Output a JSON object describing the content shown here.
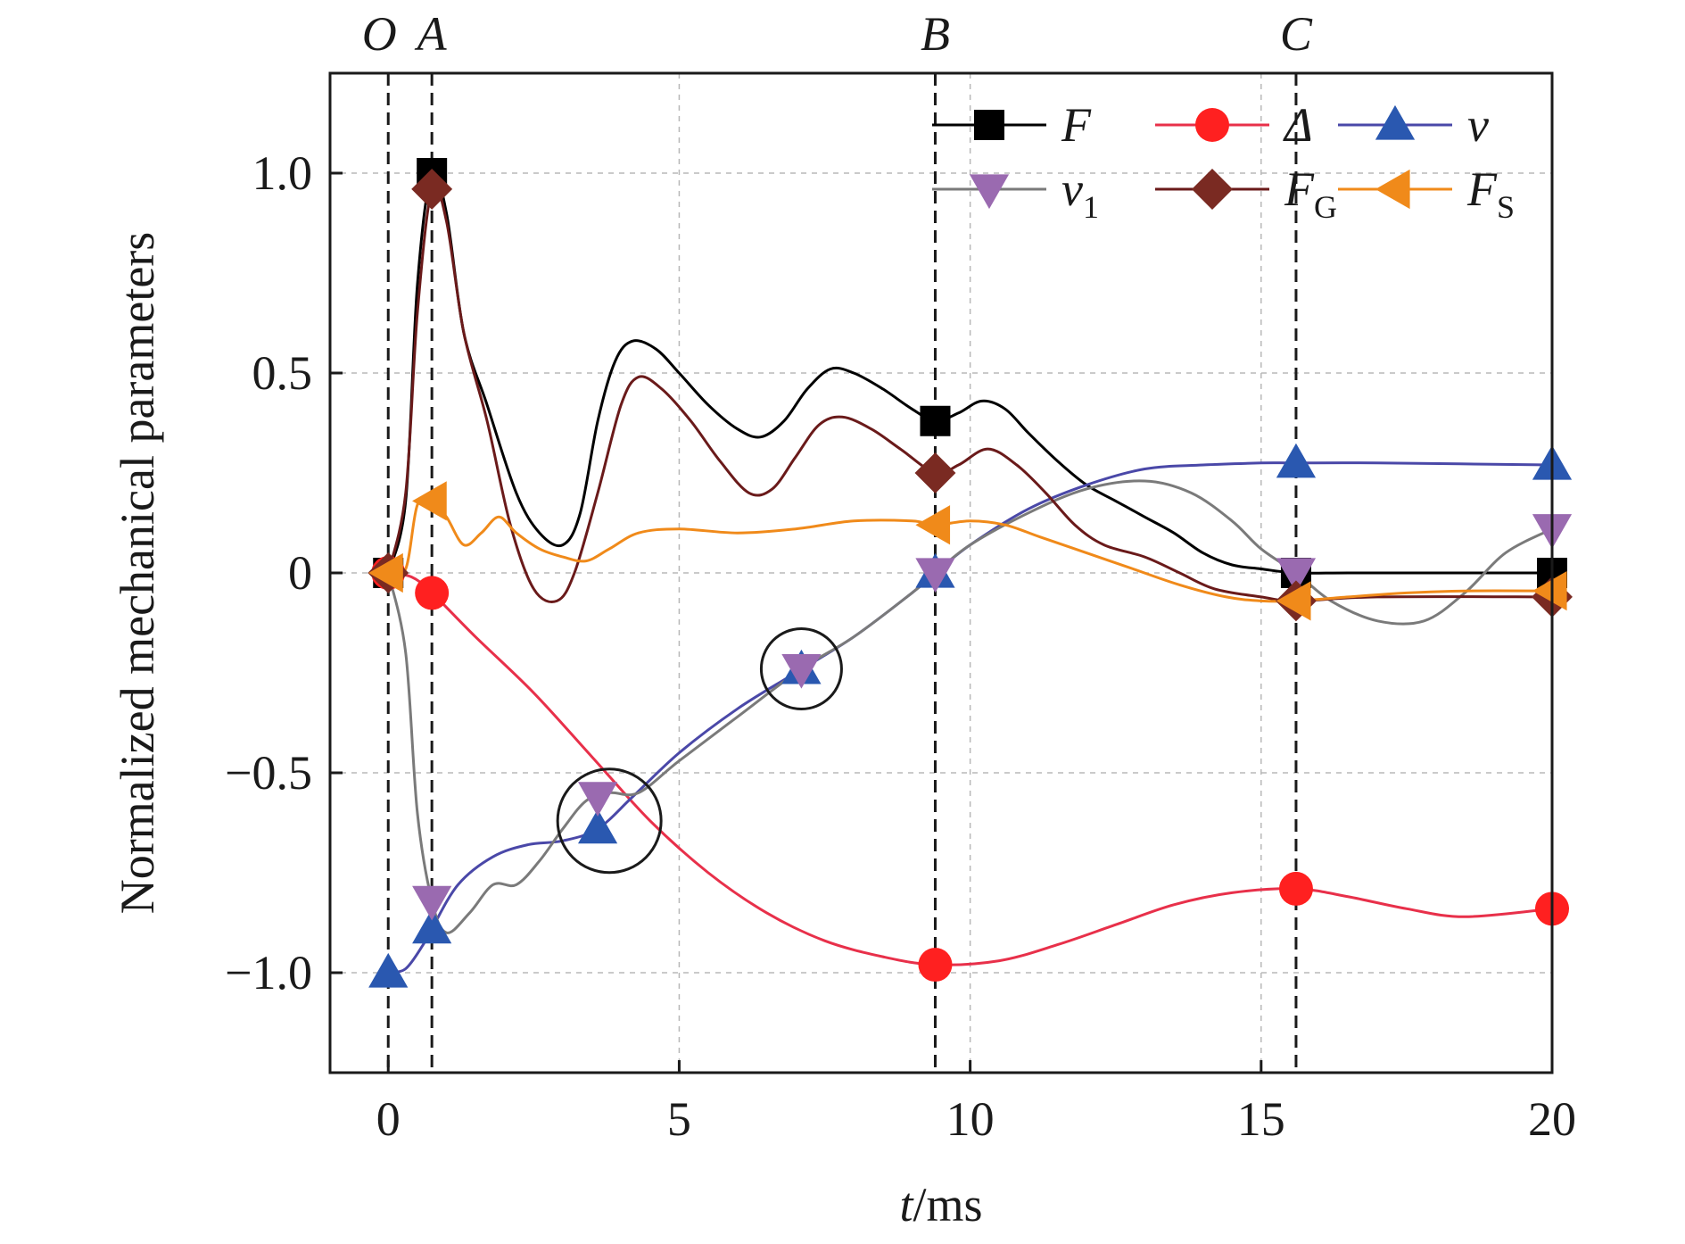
{
  "chart_data": {
    "type": "line",
    "title": "",
    "xlabel_italic": "t",
    "xlabel_rest": "/ms",
    "ylabel": "Normalized mechanical parameters",
    "xlim": [
      -1,
      20
    ],
    "ylim": [
      -1.25,
      1.25
    ],
    "xticks": [
      0,
      5,
      10,
      15,
      20
    ],
    "xtick_labels": [
      "0",
      "5",
      "10",
      "15",
      "20"
    ],
    "yticks": [
      -1.0,
      -0.5,
      0,
      0.5,
      1.0
    ],
    "ytick_labels": [
      "−1.0",
      "−0.5",
      "0",
      "0.5",
      "1.0"
    ],
    "grid": true,
    "legend_position": "top-right",
    "event_lines": [
      {
        "label": "O",
        "x": 0
      },
      {
        "label": "A",
        "x": 0.75
      },
      {
        "label": "B",
        "x": 9.4
      },
      {
        "label": "C",
        "x": 15.6
      }
    ],
    "highlight_circles": [
      {
        "x": 3.8,
        "y": -0.62
      },
      {
        "x": 7.1,
        "y": -0.24
      }
    ],
    "series": [
      {
        "name": "F",
        "sub": "",
        "color": "#000000",
        "marker": "square",
        "x": [
          0,
          0.3,
          0.5,
          0.75,
          1.0,
          1.3,
          1.7,
          2.2,
          2.6,
          3.0,
          3.3,
          3.6,
          3.9,
          4.2,
          4.6,
          5.0,
          5.5,
          6.0,
          6.4,
          6.8,
          7.2,
          7.6,
          8.0,
          8.5,
          9.0,
          9.4,
          9.8,
          10.2,
          10.6,
          11.0,
          11.5,
          12.0,
          12.5,
          13.0,
          13.5,
          14.0,
          14.5,
          15.0,
          15.6,
          16.5,
          18.0,
          20.0
        ],
        "y": [
          0,
          0.18,
          0.72,
          1.0,
          0.9,
          0.6,
          0.42,
          0.2,
          0.1,
          0.07,
          0.15,
          0.38,
          0.53,
          0.58,
          0.56,
          0.5,
          0.42,
          0.36,
          0.34,
          0.38,
          0.46,
          0.51,
          0.5,
          0.46,
          0.41,
          0.38,
          0.4,
          0.43,
          0.41,
          0.35,
          0.28,
          0.22,
          0.18,
          0.14,
          0.1,
          0.05,
          0.02,
          0.01,
          0.0,
          0.0,
          0.0,
          0.0
        ],
        "markers_x": [
          0,
          0.75,
          9.4,
          15.6,
          20.0
        ]
      },
      {
        "name": "Δ",
        "sub": "",
        "color": "#e8304a",
        "marker": "circle",
        "marker_color": "#ff2020",
        "x": [
          0,
          0.4,
          0.75,
          1.5,
          2.5,
          3.5,
          4.5,
          5.5,
          6.5,
          7.5,
          8.5,
          9.4,
          10.5,
          11.5,
          12.5,
          13.5,
          14.5,
          15.6,
          16.5,
          17.5,
          18.5,
          20.0
        ],
        "y": [
          0,
          -0.01,
          -0.05,
          -0.16,
          -0.3,
          -0.46,
          -0.62,
          -0.75,
          -0.85,
          -0.92,
          -0.96,
          -0.98,
          -0.97,
          -0.93,
          -0.88,
          -0.83,
          -0.8,
          -0.79,
          -0.81,
          -0.84,
          -0.86,
          -0.84
        ],
        "markers_x": [
          0,
          0.75,
          9.4,
          15.6,
          20.0
        ]
      },
      {
        "name": "v",
        "sub": "",
        "color": "#4a48a8",
        "marker": "triangle-up",
        "marker_color": "#2a58b0",
        "x": [
          0,
          0.3,
          0.6,
          0.75,
          1.2,
          1.8,
          2.4,
          3.0,
          3.6,
          4.2,
          5.0,
          6.0,
          7.0,
          8.0,
          9.0,
          9.4,
          10.0,
          11.0,
          12.0,
          13.0,
          14.0,
          15.0,
          15.6,
          17.0,
          20.0
        ],
        "y": [
          -1.0,
          -0.99,
          -0.93,
          -0.89,
          -0.78,
          -0.71,
          -0.68,
          -0.67,
          -0.64,
          -0.56,
          -0.45,
          -0.34,
          -0.25,
          -0.16,
          -0.05,
          0.0,
          0.07,
          0.16,
          0.22,
          0.26,
          0.27,
          0.275,
          0.275,
          0.275,
          0.27
        ],
        "markers_x": [
          0,
          0.75,
          3.6,
          7.1,
          9.4,
          15.6,
          20.0
        ]
      },
      {
        "name": "v",
        "sub": "1",
        "color": "#7a7a7a",
        "marker": "triangle-down",
        "marker_color": "#9a6ab0",
        "x": [
          0,
          0.3,
          0.5,
          0.75,
          1.0,
          1.4,
          1.8,
          2.2,
          2.6,
          3.0,
          3.4,
          3.8,
          4.3,
          5.0,
          6.0,
          7.1,
          8.0,
          9.0,
          9.4,
          10.0,
          11.0,
          12.0,
          13.0,
          13.8,
          14.5,
          15.0,
          15.6,
          16.2,
          17.0,
          17.8,
          18.5,
          19.2,
          20.0
        ],
        "y": [
          0,
          -0.2,
          -0.6,
          -0.82,
          -0.9,
          -0.85,
          -0.78,
          -0.78,
          -0.72,
          -0.64,
          -0.57,
          -0.55,
          -0.55,
          -0.47,
          -0.36,
          -0.24,
          -0.16,
          -0.05,
          0.0,
          0.07,
          0.15,
          0.21,
          0.23,
          0.2,
          0.13,
          0.06,
          0.0,
          -0.07,
          -0.12,
          -0.12,
          -0.05,
          0.05,
          0.11
        ],
        "markers_x": [
          0.75,
          3.6,
          7.1,
          9.4,
          15.6,
          20.0
        ]
      },
      {
        "name": "F",
        "sub": "G",
        "color": "#6a1a1a",
        "marker": "diamond",
        "marker_color": "#7a2a22",
        "x": [
          0,
          0.3,
          0.5,
          0.75,
          1.0,
          1.3,
          1.7,
          2.1,
          2.5,
          2.9,
          3.2,
          3.6,
          4.0,
          4.3,
          4.7,
          5.2,
          5.7,
          6.2,
          6.6,
          7.0,
          7.4,
          7.8,
          8.3,
          8.8,
          9.4,
          9.8,
          10.3,
          10.8,
          11.3,
          11.8,
          12.3,
          13.0,
          13.6,
          14.2,
          15.0,
          15.6,
          17.0,
          20.0
        ],
        "y": [
          0,
          0.2,
          0.65,
          0.96,
          0.88,
          0.6,
          0.38,
          0.12,
          -0.04,
          -0.07,
          0.0,
          0.2,
          0.42,
          0.49,
          0.46,
          0.38,
          0.28,
          0.2,
          0.21,
          0.29,
          0.37,
          0.39,
          0.36,
          0.31,
          0.25,
          0.27,
          0.31,
          0.27,
          0.2,
          0.12,
          0.07,
          0.04,
          0.0,
          -0.04,
          -0.06,
          -0.07,
          -0.06,
          -0.06
        ],
        "markers_x": [
          0,
          0.75,
          9.4,
          15.6,
          20.0
        ]
      },
      {
        "name": "F",
        "sub": "S",
        "color": "#f08a1a",
        "marker": "triangle-left",
        "x": [
          0,
          0.3,
          0.5,
          0.75,
          1.0,
          1.3,
          1.6,
          1.9,
          2.2,
          2.6,
          3.0,
          3.4,
          3.8,
          4.3,
          5.0,
          6.0,
          7.0,
          8.0,
          9.0,
          9.4,
          10.0,
          10.6,
          11.2,
          12.0,
          12.8,
          13.6,
          14.4,
          15.0,
          15.6,
          16.5,
          17.5,
          18.5,
          20.0
        ],
        "y": [
          0,
          0.01,
          0.17,
          0.18,
          0.14,
          0.07,
          0.1,
          0.14,
          0.1,
          0.06,
          0.04,
          0.03,
          0.06,
          0.1,
          0.11,
          0.1,
          0.11,
          0.13,
          0.13,
          0.12,
          0.13,
          0.12,
          0.09,
          0.05,
          0.01,
          -0.03,
          -0.06,
          -0.07,
          -0.07,
          -0.06,
          -0.05,
          -0.045,
          -0.045
        ],
        "markers_x": [
          0,
          0.75,
          9.4,
          15.6,
          20.0
        ]
      }
    ]
  }
}
